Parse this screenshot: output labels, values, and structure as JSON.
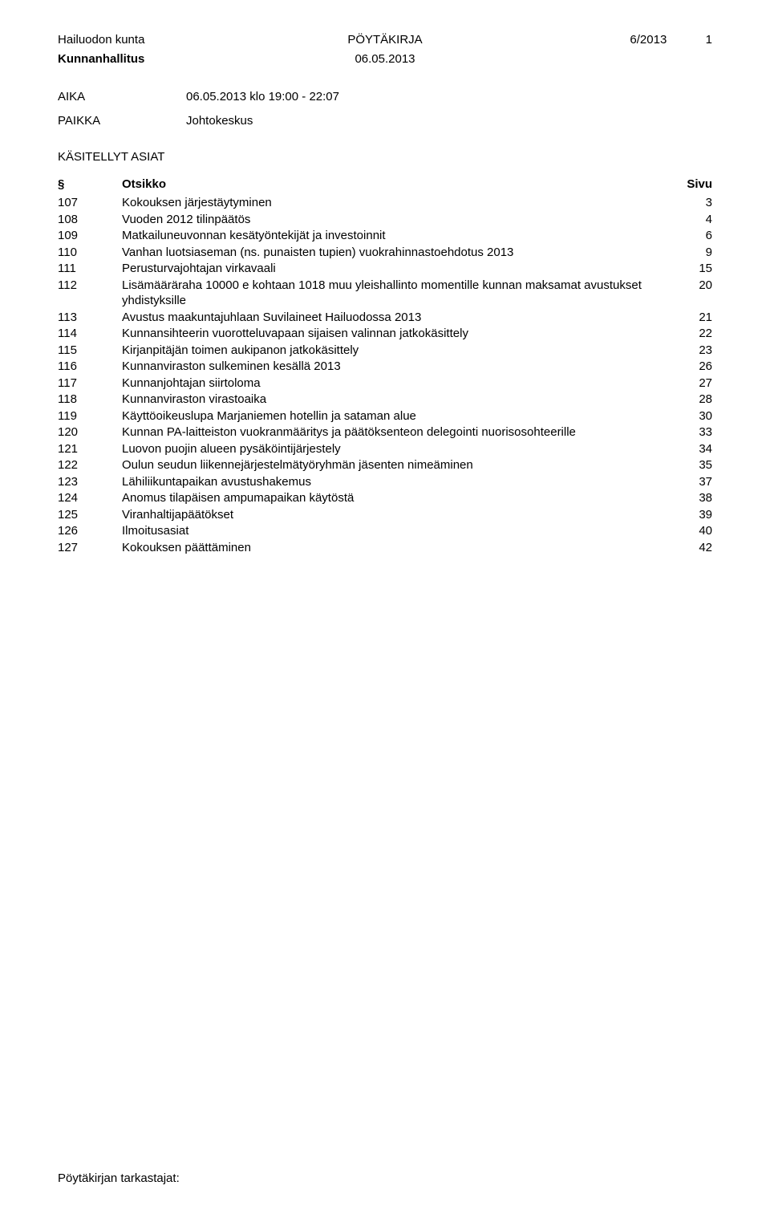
{
  "header": {
    "municipality": "Hailuodon kunta",
    "doctype": "PÖYTÄKIRJA",
    "docnum": "6/2013",
    "pagenum": "1",
    "board": "Kunnanhallitus",
    "date": "06.05.2013"
  },
  "meeting": {
    "time_label": "AIKA",
    "time_value": "06.05.2013 klo 19:00 - 22:07",
    "place_label": "PAIKKA",
    "place_value": "Johtokeskus"
  },
  "agenda": {
    "heading": "KÄSITELLYT ASIAT",
    "col_section": "§",
    "col_title": "Otsikko",
    "col_page": "Sivu",
    "items": [
      {
        "num": "107",
        "title": "Kokouksen järjestäytyminen",
        "page": "3"
      },
      {
        "num": "108",
        "title": "Vuoden 2012 tilinpäätös",
        "page": "4"
      },
      {
        "num": "109",
        "title": "Matkailuneuvonnan kesätyöntekijät ja investoinnit",
        "page": "6"
      },
      {
        "num": "110",
        "title": "Vanhan luotsiaseman (ns. punaisten tupien) vuokrahinnastoehdotus 2013",
        "page": "9"
      },
      {
        "num": "111",
        "title": "Perusturvajohtajan virkavaali",
        "page": "15"
      },
      {
        "num": "112",
        "title": "Lisämääräraha 10000 e kohtaan 1018 muu yleishallinto momentille kunnan maksamat avustukset yhdistyksille",
        "page": "20"
      },
      {
        "num": "113",
        "title": "Avustus maakuntajuhlaan Suvilaineet Hailuodossa 2013",
        "page": "21"
      },
      {
        "num": "114",
        "title": "Kunnansihteerin vuorotteluvapaan sijaisen valinnan jatkokäsittely",
        "page": "22"
      },
      {
        "num": "115",
        "title": "Kirjanpitäjän toimen aukipanon jatkokäsittely",
        "page": "23"
      },
      {
        "num": "116",
        "title": "Kunnanviraston sulkeminen kesällä 2013",
        "page": "26"
      },
      {
        "num": "117",
        "title": "Kunnanjohtajan siirtoloma",
        "page": "27"
      },
      {
        "num": "118",
        "title": "Kunnanviraston virastoaika",
        "page": "28"
      },
      {
        "num": "119",
        "title": "Käyttöoikeuslupa Marjaniemen hotellin ja sataman alue",
        "page": "30"
      },
      {
        "num": "120",
        "title": "Kunnan PA-laitteiston vuokranmääritys ja päätöksenteon delegointi nuorisosohteerille",
        "page": "33"
      },
      {
        "num": "121",
        "title": "Luovon puojin alueen pysäköintijärjestely",
        "page": "34"
      },
      {
        "num": "122",
        "title": "Oulun seudun liikennejärjestelmätyöryhmän jäsenten nimeäminen",
        "page": "35"
      },
      {
        "num": "123",
        "title": "Lähiliikuntapaikan avustushakemus",
        "page": "37"
      },
      {
        "num": "124",
        "title": "Anomus tilapäisen ampumapaikan käytöstä",
        "page": "38"
      },
      {
        "num": "125",
        "title": "Viranhaltijapäätökset",
        "page": "39"
      },
      {
        "num": "126",
        "title": "Ilmoitusasiat",
        "page": "40"
      },
      {
        "num": "127",
        "title": "Kokouksen päättäminen",
        "page": "42"
      }
    ]
  },
  "footer": {
    "text": "Pöytäkirjan tarkastajat:"
  }
}
